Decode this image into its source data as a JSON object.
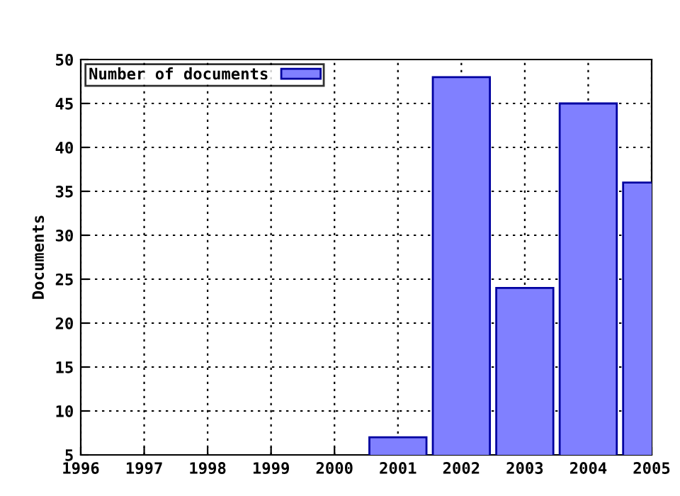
{
  "chart_data": {
    "type": "bar",
    "ylabel": "Documents",
    "legend": "top left",
    "x": [
      2001,
      2002,
      2003,
      2004,
      2005
    ],
    "series": [
      {
        "name": "Number of documents",
        "color": "#8080ff",
        "values": [
          7,
          48,
          24,
          45,
          36
        ]
      }
    ],
    "xlim": [
      1996,
      2005
    ],
    "xticks": [
      1996,
      1997,
      1998,
      1999,
      2000,
      2001,
      2002,
      2003,
      2004,
      2005
    ],
    "ylim": [
      5,
      50
    ],
    "yticks": [
      5,
      10,
      15,
      20,
      25,
      30,
      35,
      40,
      45,
      50
    ],
    "grid": true
  }
}
